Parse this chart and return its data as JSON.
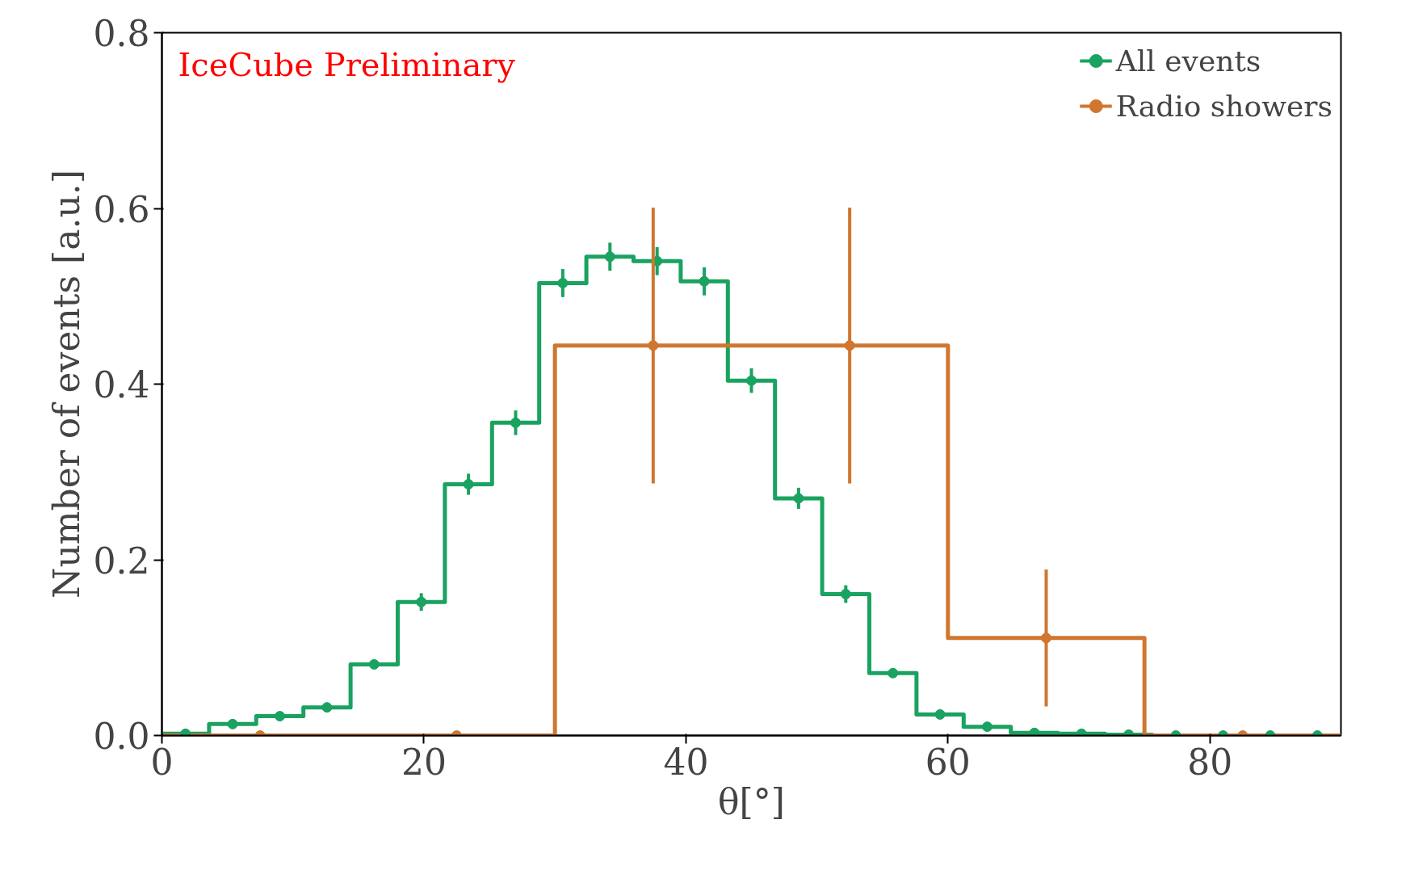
{
  "chart_data": {
    "type": "step",
    "xlabel": "θ[°]",
    "ylabel": "Number of events [a.u.]",
    "annotations": [
      "IceCube Preliminary"
    ],
    "xlim": [
      0,
      90
    ],
    "ylim": [
      0,
      0.8
    ],
    "xticks": [
      0,
      20,
      40,
      60,
      80
    ],
    "yticks": [
      {
        "value": 0,
        "label": "0.0"
      },
      {
        "value": 0.2,
        "label": "0.2"
      },
      {
        "value": 0.4,
        "label": "0.4"
      },
      {
        "value": 0.6,
        "label": "0.6"
      },
      {
        "value": 0.8,
        "label": "0.8"
      }
    ],
    "grid": false,
    "legend": "top right",
    "line_style": "solid",
    "series": [
      {
        "color": "#1aa260",
        "x": [
          0,
          3.6,
          7.2,
          10.8,
          14.4,
          18,
          21.6,
          25.2,
          28.8,
          32.4,
          36,
          39.6,
          43.2,
          46.8,
          50.4,
          54,
          57.6,
          61.2,
          64.8,
          68.4,
          72,
          75.6,
          79.2,
          82.8,
          86.4,
          90
        ],
        "values": [
          0.002,
          0.013,
          0.022,
          0.032,
          0.081,
          0.152,
          0.286,
          0.356,
          0.515,
          0.545,
          0.54,
          0.517,
          0.404,
          0.27,
          0.161,
          0.071,
          0.024,
          0.01,
          0.003,
          0.002,
          0.001,
          0,
          0,
          0,
          0,
          0
        ]
      },
      {
        "color": "#d0762f",
        "x": [
          0,
          15,
          30,
          45,
          60,
          75,
          90
        ],
        "values": [
          0,
          0,
          0.444,
          0.444,
          0.111,
          0,
          0
        ]
      },
      {
        "type": "scatter",
        "name": "All events",
        "color": "#1aa260",
        "marker": "circle",
        "x": [
          1.8,
          5.4,
          9,
          12.6,
          16.2,
          19.8,
          23.4,
          27,
          30.6,
          34.2,
          37.8,
          41.4,
          45,
          48.6,
          52.2,
          55.8,
          59.4,
          63,
          66.6,
          70.2,
          73.8,
          77.4,
          81,
          84.6,
          88.2
        ],
        "values": [
          0.002,
          0.013,
          0.022,
          0.032,
          0.081,
          0.152,
          0.286,
          0.356,
          0.515,
          0.545,
          0.54,
          0.517,
          0.404,
          0.27,
          0.161,
          0.071,
          0.024,
          0.01,
          0.003,
          0.002,
          0.001,
          0,
          0,
          0,
          0
        ],
        "errors": [
          null,
          null,
          null,
          null,
          null,
          0.01,
          0.012,
          0.014,
          0.016,
          0.016,
          0.016,
          0.016,
          0.014,
          0.012,
          0.01,
          null,
          null,
          null,
          null,
          null,
          null,
          null,
          null,
          null,
          null
        ]
      },
      {
        "type": "scatter",
        "name": "Radio showers",
        "color": "#d0762f",
        "marker": "circle",
        "x": [
          7.5,
          22.5,
          37.5,
          52.5,
          67.5,
          82.5
        ],
        "values": [
          0,
          0,
          0.444,
          0.444,
          0.111,
          0
        ],
        "errors": [
          null,
          null,
          0.157,
          0.157,
          0.078,
          null
        ]
      }
    ]
  }
}
